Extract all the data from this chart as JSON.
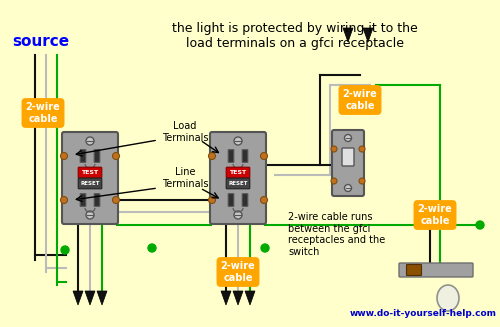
{
  "bg_color": "#FFFFCC",
  "title": "the light is protected by wiring it to the\nload terminals on a gfci receptacle",
  "title_color": "#000000",
  "title_fontsize": 9.0,
  "source_text": "source",
  "source_color": "#0000FF",
  "source_fontsize": 11,
  "website": "www.do-it-yourself-help.com",
  "website_color": "#0000CC",
  "orange_bg": "#FFA500",
  "gray_outlet": "#A0A0A0",
  "dark_gray": "#555555",
  "red_btn": "#CC0000",
  "green_wire": "#00AA00",
  "black_wire": "#111111",
  "white_wire": "#BBBBBB",
  "load_terminals_text": "Load\nTerminals",
  "line_terminals_text": "Line\nTerminals",
  "cable_label": "2-wire\ncable",
  "note_text": "2-wire cable runs\nbetween the gfci\nreceptacles and the\nswitch"
}
